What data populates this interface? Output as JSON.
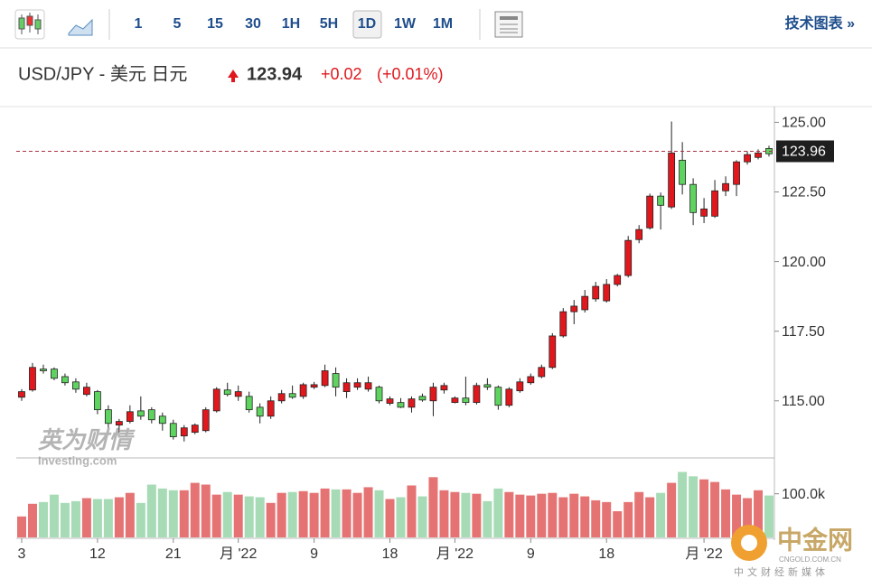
{
  "toolbar": {
    "intervals": [
      "1",
      "5",
      "15",
      "30",
      "1H",
      "5H",
      "1D",
      "1W",
      "1M"
    ],
    "link": "技术图表 »"
  },
  "header": {
    "pair": "USD/JPY - 美元 日元",
    "price": "123.94",
    "change": "+0.02",
    "change_pct": "(+0.01%)"
  },
  "watermarks": {
    "cn": "英为财情",
    "en": "Investing.com",
    "site": "中金网",
    "site_url": "CNGOLD.COM.CN",
    "site_tag": "中文财经新媒体"
  },
  "chart_data": [
    {
      "type": "candlestick",
      "up_color": "#e0181e",
      "down_color": "#5fd35f",
      "categories": [
        "3",
        null,
        null,
        null,
        null,
        null,
        null,
        "12",
        null,
        null,
        null,
        null,
        null,
        null,
        "21",
        null,
        null,
        null,
        null,
        null,
        "月 '22",
        null,
        null,
        null,
        null,
        null,
        null,
        "9",
        null,
        null,
        null,
        null,
        null,
        null,
        "18",
        null,
        null,
        null,
        null,
        null,
        "月 '22",
        null,
        null,
        null,
        null,
        null,
        null,
        "9",
        null,
        null,
        null,
        null,
        null,
        null,
        "18",
        null,
        null,
        null,
        null,
        null,
        null,
        null,
        null,
        "月 '22",
        null,
        null,
        null,
        null,
        null,
        null
      ],
      "open": [
        115.13,
        115.39,
        116.14,
        116.14,
        115.87,
        115.68,
        115.23,
        115.33,
        114.68,
        114.13,
        114.26,
        114.64,
        114.68,
        114.45,
        114.19,
        113.74,
        113.87,
        113.93,
        114.64,
        115.39,
        115.16,
        115.16,
        114.77,
        114.45,
        115.0,
        115.26,
        115.16,
        115.49,
        115.55,
        115.98,
        115.33,
        115.49,
        115.42,
        115.49,
        114.91,
        114.94,
        114.77,
        115.16,
        115.0,
        115.39,
        114.94,
        115.1,
        114.94,
        115.58,
        115.49,
        114.84,
        115.36,
        115.65,
        115.87,
        116.2,
        117.33,
        118.2,
        118.27,
        118.66,
        118.59,
        119.18,
        119.5,
        120.79,
        121.21,
        122.35,
        121.96,
        123.64,
        122.77,
        121.63,
        121.63,
        122.54,
        122.77,
        123.58,
        123.74,
        124.06
      ],
      "high": [
        115.42,
        116.36,
        116.3,
        116.2,
        115.98,
        115.81,
        115.65,
        115.39,
        114.84,
        114.35,
        114.84,
        115.16,
        114.77,
        114.58,
        114.32,
        114.13,
        114.19,
        114.77,
        115.49,
        115.65,
        115.55,
        115.33,
        114.91,
        115.16,
        115.39,
        115.55,
        115.65,
        115.68,
        116.3,
        116.2,
        115.81,
        115.81,
        115.87,
        115.55,
        115.16,
        115.1,
        115.16,
        115.26,
        115.65,
        115.65,
        115.16,
        115.87,
        115.65,
        115.81,
        115.55,
        115.49,
        115.81,
        115.98,
        116.3,
        117.43,
        118.33,
        118.62,
        118.98,
        119.27,
        119.37,
        119.56,
        120.92,
        121.31,
        122.44,
        122.48,
        125.03,
        124.29,
        122.99,
        122.28,
        122.93,
        123.06,
        123.64,
        123.96,
        124.03,
        124.16
      ],
      "low": [
        115.0,
        115.33,
        115.98,
        115.74,
        115.55,
        115.29,
        115.16,
        114.52,
        114.03,
        113.87,
        114.19,
        114.32,
        114.19,
        113.93,
        113.61,
        113.54,
        113.8,
        113.87,
        114.58,
        115.16,
        115.0,
        114.58,
        114.19,
        114.35,
        114.91,
        115.07,
        115.07,
        115.42,
        115.49,
        115.16,
        115.1,
        115.39,
        115.33,
        114.91,
        114.84,
        114.74,
        114.58,
        114.97,
        114.45,
        115.26,
        114.91,
        114.84,
        114.87,
        115.39,
        114.68,
        114.77,
        115.29,
        115.58,
        115.81,
        116.14,
        117.27,
        117.75,
        118.17,
        118.56,
        118.53,
        119.11,
        119.43,
        120.66,
        121.15,
        121.15,
        121.89,
        122.41,
        121.31,
        121.38,
        121.57,
        122.35,
        122.35,
        123.48,
        123.67,
        123.77
      ],
      "close": [
        115.33,
        116.2,
        116.08,
        115.81,
        115.65,
        115.42,
        115.49,
        114.68,
        114.19,
        114.26,
        114.61,
        114.45,
        114.32,
        114.19,
        113.71,
        114.03,
        114.13,
        114.68,
        115.42,
        115.23,
        115.33,
        114.68,
        114.45,
        115.0,
        115.26,
        115.13,
        115.58,
        115.58,
        116.08,
        115.49,
        115.65,
        115.65,
        115.65,
        115.0,
        115.07,
        114.77,
        115.07,
        115.03,
        115.49,
        115.55,
        115.1,
        114.94,
        115.55,
        115.49,
        114.84,
        115.42,
        115.68,
        115.87,
        116.2,
        117.33,
        118.2,
        118.4,
        118.75,
        119.11,
        119.18,
        119.5,
        120.76,
        121.15,
        122.35,
        122.02,
        123.9,
        122.77,
        121.76,
        121.89,
        122.54,
        122.8,
        123.58,
        123.84,
        123.9,
        123.87
      ],
      "ylim": [
        112.95,
        125.5
      ],
      "yticks": [
        {
          "value": 115,
          "label": "115.00"
        },
        {
          "value": 117.5,
          "label": "117.50"
        },
        {
          "value": 120,
          "label": "120.00"
        },
        {
          "value": 122.5,
          "label": "122.50"
        },
        {
          "value": 125,
          "label": "125.00"
        }
      ],
      "last_price": 123.96
    },
    {
      "type": "bar",
      "up_color": "#e57373",
      "down_color": "#a6dbb6",
      "values": [
        48000,
        77000,
        81000,
        98000,
        79000,
        83000,
        90000,
        88000,
        88000,
        92000,
        102000,
        79000,
        121000,
        112000,
        108000,
        108000,
        125000,
        121000,
        98000,
        104000,
        98000,
        94000,
        92000,
        79000,
        102000,
        104000,
        106000,
        102000,
        112000,
        110000,
        110000,
        102000,
        115000,
        108000,
        88000,
        92000,
        119000,
        94000,
        138000,
        108000,
        104000,
        102000,
        100000,
        83000,
        112000,
        104000,
        98000,
        96000,
        100000,
        102000,
        92000,
        100000,
        94000,
        85000,
        81000,
        60000,
        81000,
        104000,
        92000,
        102000,
        125000,
        150000,
        140000,
        133000,
        127000,
        110000,
        98000,
        90000,
        108000,
        96000
      ],
      "ylim": [
        0,
        180000
      ],
      "yticks": [
        {
          "value": 100000,
          "label": "100.0k"
        }
      ]
    }
  ]
}
